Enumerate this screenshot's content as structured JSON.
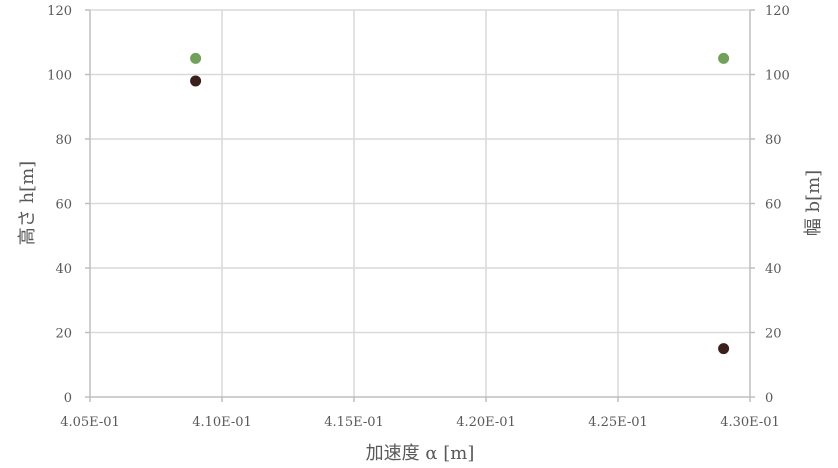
{
  "chart_data": {
    "type": "scatter",
    "title": "",
    "xlabel": "加速度 α [m]",
    "ylabel": "高さ h[m]",
    "y2label": "幅 b[m]",
    "xlim": [
      0.405,
      0.43
    ],
    "ylim": [
      0,
      120
    ],
    "y2lim": [
      0,
      120
    ],
    "x_ticks": [
      "4.05E-01",
      "4.10E-01",
      "4.15E-01",
      "4.20E-01",
      "4.25E-01",
      "4.30E-01"
    ],
    "y_ticks": [
      "0",
      "20",
      "40",
      "60",
      "80",
      "100",
      "120"
    ],
    "y2_ticks": [
      "0",
      "20",
      "40",
      "60",
      "80",
      "100",
      "120"
    ],
    "grid": true,
    "series": [
      {
        "axis": "left",
        "color": "#3b1f1a",
        "x": [
          0.409,
          0.429
        ],
        "y": [
          98,
          15
        ]
      },
      {
        "axis": "right",
        "color": "#70a05a",
        "x": [
          0.409,
          0.429
        ],
        "y": [
          105,
          105
        ]
      }
    ]
  }
}
